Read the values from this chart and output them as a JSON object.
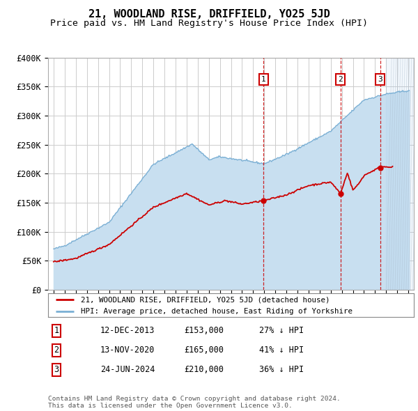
{
  "title": "21, WOODLAND RISE, DRIFFIELD, YO25 5JD",
  "subtitle": "Price paid vs. HM Land Registry's House Price Index (HPI)",
  "ylim": [
    0,
    400000
  ],
  "yticks": [
    0,
    50000,
    100000,
    150000,
    200000,
    250000,
    300000,
    350000,
    400000
  ],
  "ytick_labels": [
    "£0",
    "£50K",
    "£100K",
    "£150K",
    "£200K",
    "£250K",
    "£300K",
    "£350K",
    "£400K"
  ],
  "xlim_start": 1994.5,
  "xlim_end": 2027.5,
  "sale_dates": [
    2013.95,
    2020.87,
    2024.48
  ],
  "sale_prices": [
    153000,
    165000,
    210000
  ],
  "sale_labels": [
    "1",
    "2",
    "3"
  ],
  "sale_date_strings": [
    "12-DEC-2013",
    "13-NOV-2020",
    "24-JUN-2024"
  ],
  "sale_price_strings": [
    "£153,000",
    "£165,000",
    "£210,000"
  ],
  "sale_hpi_strings": [
    "27% ↓ HPI",
    "41% ↓ HPI",
    "36% ↓ HPI"
  ],
  "red_color": "#cc0000",
  "blue_fill_color": "#c8dff0",
  "blue_line_color": "#7aafd4",
  "grid_color": "#cccccc",
  "legend_label_red": "21, WOODLAND RISE, DRIFFIELD, YO25 5JD (detached house)",
  "legend_label_blue": "HPI: Average price, detached house, East Riding of Yorkshire",
  "footer": "Contains HM Land Registry data © Crown copyright and database right 2024.\nThis data is licensed under the Open Government Licence v3.0.",
  "title_fontsize": 11,
  "subtitle_fontsize": 9.5,
  "tick_fontsize": 8.5,
  "bg_color": "#ffffff"
}
